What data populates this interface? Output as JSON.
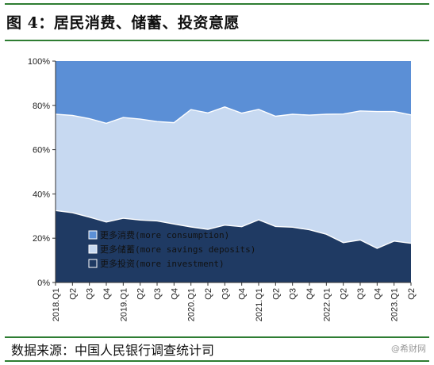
{
  "figure": {
    "title": "图 4：居民消费、储蓄、投资意愿",
    "source": "数据来源：中国人民银行调查统计司",
    "watermark": "@希财网"
  },
  "colors": {
    "consumption": "#5b8fd6",
    "savings": "#c7d9f1",
    "investment": "#1f3a63",
    "rule": "#2e7d32"
  },
  "chart_data": {
    "type": "area",
    "stacked": true,
    "x": [
      "2018.Q1",
      "Q2",
      "Q3",
      "Q4",
      "2019.Q1",
      "Q2",
      "Q3",
      "Q4",
      "2020.Q1",
      "Q2",
      "Q3",
      "Q4",
      "2021.Q1",
      "Q2",
      "Q3",
      "Q4",
      "2022.Q1",
      "Q2",
      "Q3",
      "Q4",
      "2023.Q1",
      "Q2"
    ],
    "ylim": [
      0,
      100
    ],
    "yticks": [
      "0%",
      "20%",
      "40%",
      "60%",
      "80%",
      "100%"
    ],
    "grid": false,
    "legend_position": "bottom-left",
    "series": [
      {
        "name": "更多储蓄(more savings deposits)",
        "key": "savings",
        "values": [
          43.5,
          44.0,
          44.5,
          44.6,
          45.5,
          45.6,
          44.9,
          45.8,
          53.0,
          52.6,
          53.4,
          51.3,
          49.9,
          49.8,
          51.0,
          51.8,
          54.2,
          58.1,
          58.3,
          61.8,
          58.5,
          58.0
        ]
      },
      {
        "name": "更多投资(more investment)",
        "key": "investment",
        "values": [
          32.5,
          31.5,
          29.5,
          27.3,
          29.0,
          28.2,
          27.8,
          26.4,
          25.1,
          24.0,
          25.9,
          25.2,
          28.3,
          25.3,
          25.0,
          23.8,
          21.8,
          18.0,
          19.2,
          15.4,
          18.7,
          17.7
        ]
      },
      {
        "name": "更多消费(more consumption)",
        "key": "consumption",
        "values": [
          24.0,
          24.5,
          26.0,
          28.1,
          25.5,
          26.2,
          27.3,
          27.8,
          21.9,
          23.4,
          20.7,
          23.5,
          21.8,
          24.9,
          24.0,
          24.4,
          24.0,
          23.9,
          22.5,
          22.8,
          22.8,
          24.3
        ]
      }
    ],
    "legend_order": [
      "consumption",
      "savings",
      "investment"
    ]
  }
}
